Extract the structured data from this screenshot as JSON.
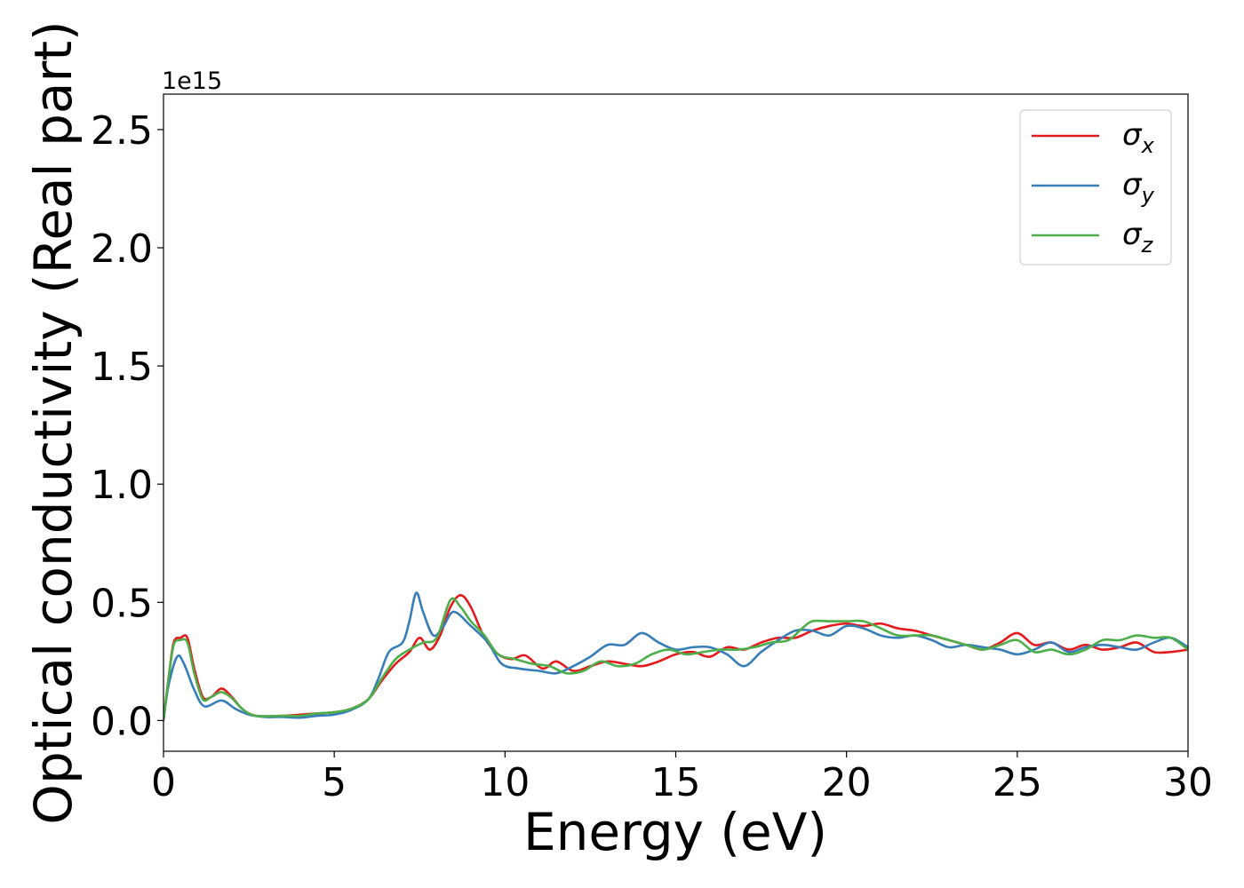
{
  "chart_data": {
    "type": "line",
    "title": "",
    "xlabel": "Energy (eV)",
    "ylabel": "Optical conductivity (Real part)",
    "y_offset_label": "1e15",
    "y_scale": 1000000000000000.0,
    "xlim": [
      0,
      30
    ],
    "ylim": [
      -0.13,
      2.65
    ],
    "xticks": [
      0,
      5,
      10,
      15,
      20,
      25,
      30
    ],
    "xtick_labels": [
      "0",
      "5",
      "10",
      "15",
      "20",
      "25",
      "30"
    ],
    "yticks": [
      0.0,
      0.5,
      1.0,
      1.5,
      2.0,
      2.5
    ],
    "ytick_labels": [
      "0.0",
      "0.5",
      "1.0",
      "1.5",
      "2.0",
      "2.5"
    ],
    "grid": false,
    "legend_position": "top-right",
    "series": [
      {
        "name": "σx",
        "legend_main": "σ",
        "legend_sub": "x",
        "color": "#e41a1c",
        "points": [
          [
            0,
            0
          ],
          [
            0.15,
            0.18
          ],
          [
            0.3,
            0.33
          ],
          [
            0.5,
            0.35
          ],
          [
            0.7,
            0.35
          ],
          [
            0.9,
            0.22
          ],
          [
            1.15,
            0.1
          ],
          [
            1.4,
            0.1
          ],
          [
            1.7,
            0.135
          ],
          [
            2.0,
            0.1
          ],
          [
            2.3,
            0.05
          ],
          [
            2.7,
            0.02
          ],
          [
            3.5,
            0.02
          ],
          [
            4.0,
            0.025
          ],
          [
            4.5,
            0.03
          ],
          [
            5.0,
            0.035
          ],
          [
            5.5,
            0.05
          ],
          [
            6.0,
            0.09
          ],
          [
            6.4,
            0.17
          ],
          [
            6.8,
            0.24
          ],
          [
            7.2,
            0.29
          ],
          [
            7.5,
            0.35
          ],
          [
            7.8,
            0.3
          ],
          [
            8.1,
            0.36
          ],
          [
            8.4,
            0.48
          ],
          [
            8.7,
            0.53
          ],
          [
            9.0,
            0.48
          ],
          [
            9.4,
            0.35
          ],
          [
            9.8,
            0.28
          ],
          [
            10.2,
            0.26
          ],
          [
            10.6,
            0.275
          ],
          [
            11.1,
            0.22
          ],
          [
            11.5,
            0.25
          ],
          [
            12.0,
            0.21
          ],
          [
            12.5,
            0.23
          ],
          [
            13.0,
            0.25
          ],
          [
            13.5,
            0.24
          ],
          [
            14.0,
            0.23
          ],
          [
            14.5,
            0.25
          ],
          [
            15.0,
            0.28
          ],
          [
            15.5,
            0.29
          ],
          [
            16.0,
            0.27
          ],
          [
            16.5,
            0.31
          ],
          [
            17.0,
            0.3
          ],
          [
            17.5,
            0.33
          ],
          [
            18.0,
            0.35
          ],
          [
            18.5,
            0.35
          ],
          [
            19.0,
            0.38
          ],
          [
            19.5,
            0.4
          ],
          [
            20.0,
            0.41
          ],
          [
            20.5,
            0.4
          ],
          [
            21.0,
            0.41
          ],
          [
            21.5,
            0.39
          ],
          [
            22.0,
            0.38
          ],
          [
            22.5,
            0.36
          ],
          [
            23.0,
            0.34
          ],
          [
            23.5,
            0.32
          ],
          [
            24.0,
            0.3
          ],
          [
            24.5,
            0.33
          ],
          [
            25.0,
            0.37
          ],
          [
            25.5,
            0.32
          ],
          [
            26.0,
            0.33
          ],
          [
            26.5,
            0.3
          ],
          [
            27.0,
            0.32
          ],
          [
            27.5,
            0.3
          ],
          [
            28.0,
            0.31
          ],
          [
            28.5,
            0.33
          ],
          [
            29.0,
            0.29
          ],
          [
            29.5,
            0.29
          ],
          [
            30.0,
            0.3
          ]
        ]
      },
      {
        "name": "σy",
        "legend_main": "σ",
        "legend_sub": "y",
        "color": "#377eb8",
        "points": [
          [
            0,
            0
          ],
          [
            0.15,
            0.15
          ],
          [
            0.4,
            0.27
          ],
          [
            0.6,
            0.24
          ],
          [
            0.9,
            0.13
          ],
          [
            1.2,
            0.06
          ],
          [
            1.7,
            0.085
          ],
          [
            2.1,
            0.05
          ],
          [
            2.5,
            0.025
          ],
          [
            3.0,
            0.015
          ],
          [
            3.5,
            0.015
          ],
          [
            4.0,
            0.012
          ],
          [
            4.5,
            0.02
          ],
          [
            5.0,
            0.025
          ],
          [
            5.5,
            0.045
          ],
          [
            6.0,
            0.09
          ],
          [
            6.3,
            0.18
          ],
          [
            6.6,
            0.29
          ],
          [
            7.0,
            0.33
          ],
          [
            7.2,
            0.42
          ],
          [
            7.4,
            0.54
          ],
          [
            7.6,
            0.46
          ],
          [
            7.9,
            0.36
          ],
          [
            8.2,
            0.4
          ],
          [
            8.5,
            0.46
          ],
          [
            9.0,
            0.4
          ],
          [
            9.5,
            0.33
          ],
          [
            9.9,
            0.24
          ],
          [
            10.4,
            0.22
          ],
          [
            11.0,
            0.21
          ],
          [
            11.5,
            0.2
          ],
          [
            12.0,
            0.23
          ],
          [
            12.5,
            0.27
          ],
          [
            13.0,
            0.32
          ],
          [
            13.5,
            0.32
          ],
          [
            14.0,
            0.37
          ],
          [
            14.5,
            0.33
          ],
          [
            15.0,
            0.3
          ],
          [
            15.5,
            0.31
          ],
          [
            16.0,
            0.31
          ],
          [
            16.5,
            0.28
          ],
          [
            17.0,
            0.23
          ],
          [
            17.5,
            0.29
          ],
          [
            18.0,
            0.34
          ],
          [
            18.5,
            0.38
          ],
          [
            19.0,
            0.38
          ],
          [
            19.5,
            0.36
          ],
          [
            20.0,
            0.4
          ],
          [
            20.5,
            0.39
          ],
          [
            21.0,
            0.36
          ],
          [
            21.5,
            0.35
          ],
          [
            22.0,
            0.36
          ],
          [
            22.5,
            0.34
          ],
          [
            23.0,
            0.31
          ],
          [
            23.5,
            0.32
          ],
          [
            24.0,
            0.31
          ],
          [
            24.5,
            0.3
          ],
          [
            25.0,
            0.28
          ],
          [
            25.5,
            0.3
          ],
          [
            26.0,
            0.33
          ],
          [
            26.5,
            0.29
          ],
          [
            27.0,
            0.31
          ],
          [
            27.5,
            0.32
          ],
          [
            28.0,
            0.31
          ],
          [
            28.5,
            0.3
          ],
          [
            29.0,
            0.33
          ],
          [
            29.5,
            0.35
          ],
          [
            30.0,
            0.31
          ]
        ]
      },
      {
        "name": "σz",
        "legend_main": "σ",
        "legend_sub": "z",
        "color": "#4daf4a",
        "points": [
          [
            0,
            0
          ],
          [
            0.15,
            0.18
          ],
          [
            0.3,
            0.32
          ],
          [
            0.5,
            0.34
          ],
          [
            0.7,
            0.33
          ],
          [
            0.9,
            0.2
          ],
          [
            1.15,
            0.09
          ],
          [
            1.4,
            0.1
          ],
          [
            1.7,
            0.12
          ],
          [
            2.0,
            0.095
          ],
          [
            2.3,
            0.05
          ],
          [
            2.7,
            0.02
          ],
          [
            3.5,
            0.02
          ],
          [
            4.0,
            0.02
          ],
          [
            4.5,
            0.03
          ],
          [
            5.0,
            0.035
          ],
          [
            5.5,
            0.05
          ],
          [
            6.0,
            0.09
          ],
          [
            6.4,
            0.18
          ],
          [
            6.8,
            0.26
          ],
          [
            7.2,
            0.3
          ],
          [
            7.6,
            0.33
          ],
          [
            8.0,
            0.35
          ],
          [
            8.4,
            0.51
          ],
          [
            8.7,
            0.48
          ],
          [
            9.0,
            0.42
          ],
          [
            9.4,
            0.36
          ],
          [
            9.8,
            0.28
          ],
          [
            10.3,
            0.26
          ],
          [
            10.8,
            0.24
          ],
          [
            11.3,
            0.23
          ],
          [
            11.8,
            0.2
          ],
          [
            12.3,
            0.21
          ],
          [
            12.8,
            0.25
          ],
          [
            13.3,
            0.23
          ],
          [
            13.8,
            0.24
          ],
          [
            14.3,
            0.28
          ],
          [
            14.8,
            0.3
          ],
          [
            15.3,
            0.28
          ],
          [
            15.8,
            0.29
          ],
          [
            16.3,
            0.3
          ],
          [
            16.8,
            0.3
          ],
          [
            17.3,
            0.31
          ],
          [
            17.8,
            0.33
          ],
          [
            18.3,
            0.34
          ],
          [
            18.7,
            0.39
          ],
          [
            19.0,
            0.42
          ],
          [
            19.5,
            0.42
          ],
          [
            20.0,
            0.42
          ],
          [
            20.5,
            0.42
          ],
          [
            21.0,
            0.39
          ],
          [
            21.5,
            0.36
          ],
          [
            22.0,
            0.36
          ],
          [
            22.5,
            0.36
          ],
          [
            23.0,
            0.34
          ],
          [
            23.5,
            0.32
          ],
          [
            24.0,
            0.3
          ],
          [
            24.5,
            0.32
          ],
          [
            25.0,
            0.34
          ],
          [
            25.5,
            0.29
          ],
          [
            26.0,
            0.3
          ],
          [
            26.5,
            0.28
          ],
          [
            27.0,
            0.3
          ],
          [
            27.5,
            0.34
          ],
          [
            28.0,
            0.34
          ],
          [
            28.5,
            0.36
          ],
          [
            29.0,
            0.35
          ],
          [
            29.5,
            0.35
          ],
          [
            30.0,
            0.3
          ]
        ]
      }
    ]
  }
}
